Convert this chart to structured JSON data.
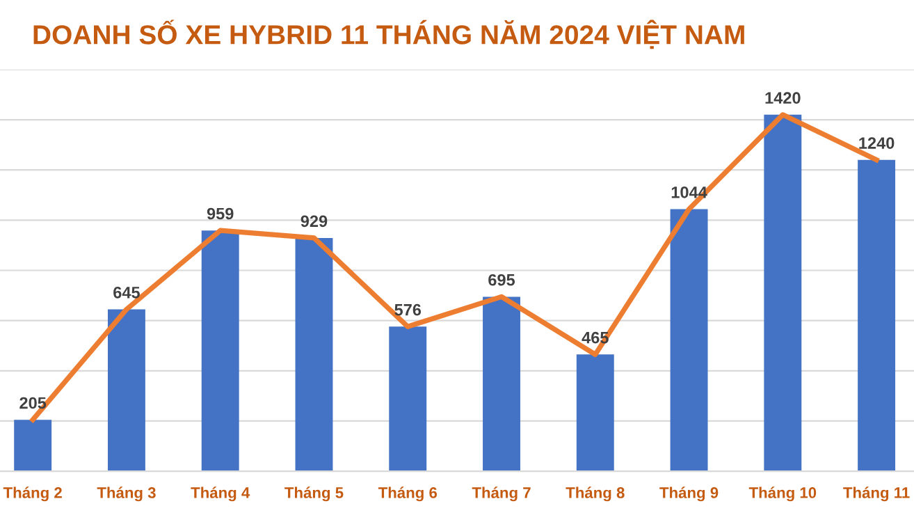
{
  "chart_data": {
    "type": "bar",
    "title": "DOANH SỐ XE HYBRID 11 THÁNG NĂM 2024 VIỆT NAM",
    "categories": [
      "Tháng 2",
      "Tháng 3",
      "Tháng 4",
      "Tháng 5",
      "Tháng 6",
      "Tháng 7",
      "Tháng 8",
      "Tháng 9",
      "Tháng 10",
      "Tháng 11"
    ],
    "series": [
      {
        "color": "#4472c4",
        "values": [
          205,
          645,
          959,
          929,
          576,
          695,
          465,
          1044,
          1420,
          1240
        ],
        "value_labels": [
          "205",
          "645",
          "959",
          "929",
          "576",
          "695",
          "465",
          "1044",
          "1420",
          "1240"
        ]
      },
      {
        "type": "line",
        "color": "#ed7d31",
        "values": [
          205,
          645,
          959,
          929,
          576,
          695,
          465,
          1044,
          1420,
          1240
        ]
      }
    ],
    "ylim": [
      0,
      1600
    ],
    "yticks": [
      {
        "value": 0,
        "label": null
      },
      {
        "value": 200,
        "label": null
      },
      {
        "value": 400,
        "label": null
      },
      {
        "value": 600,
        "label": null
      },
      {
        "value": 800,
        "label": null
      },
      {
        "value": 1000,
        "label": null
      },
      {
        "value": 1200,
        "label": null
      },
      {
        "value": 1400,
        "label": null
      },
      {
        "value": 1600,
        "label": null
      }
    ],
    "tick_labels": "x",
    "grid": "y",
    "marker": "none",
    "line_style": "solid"
  }
}
